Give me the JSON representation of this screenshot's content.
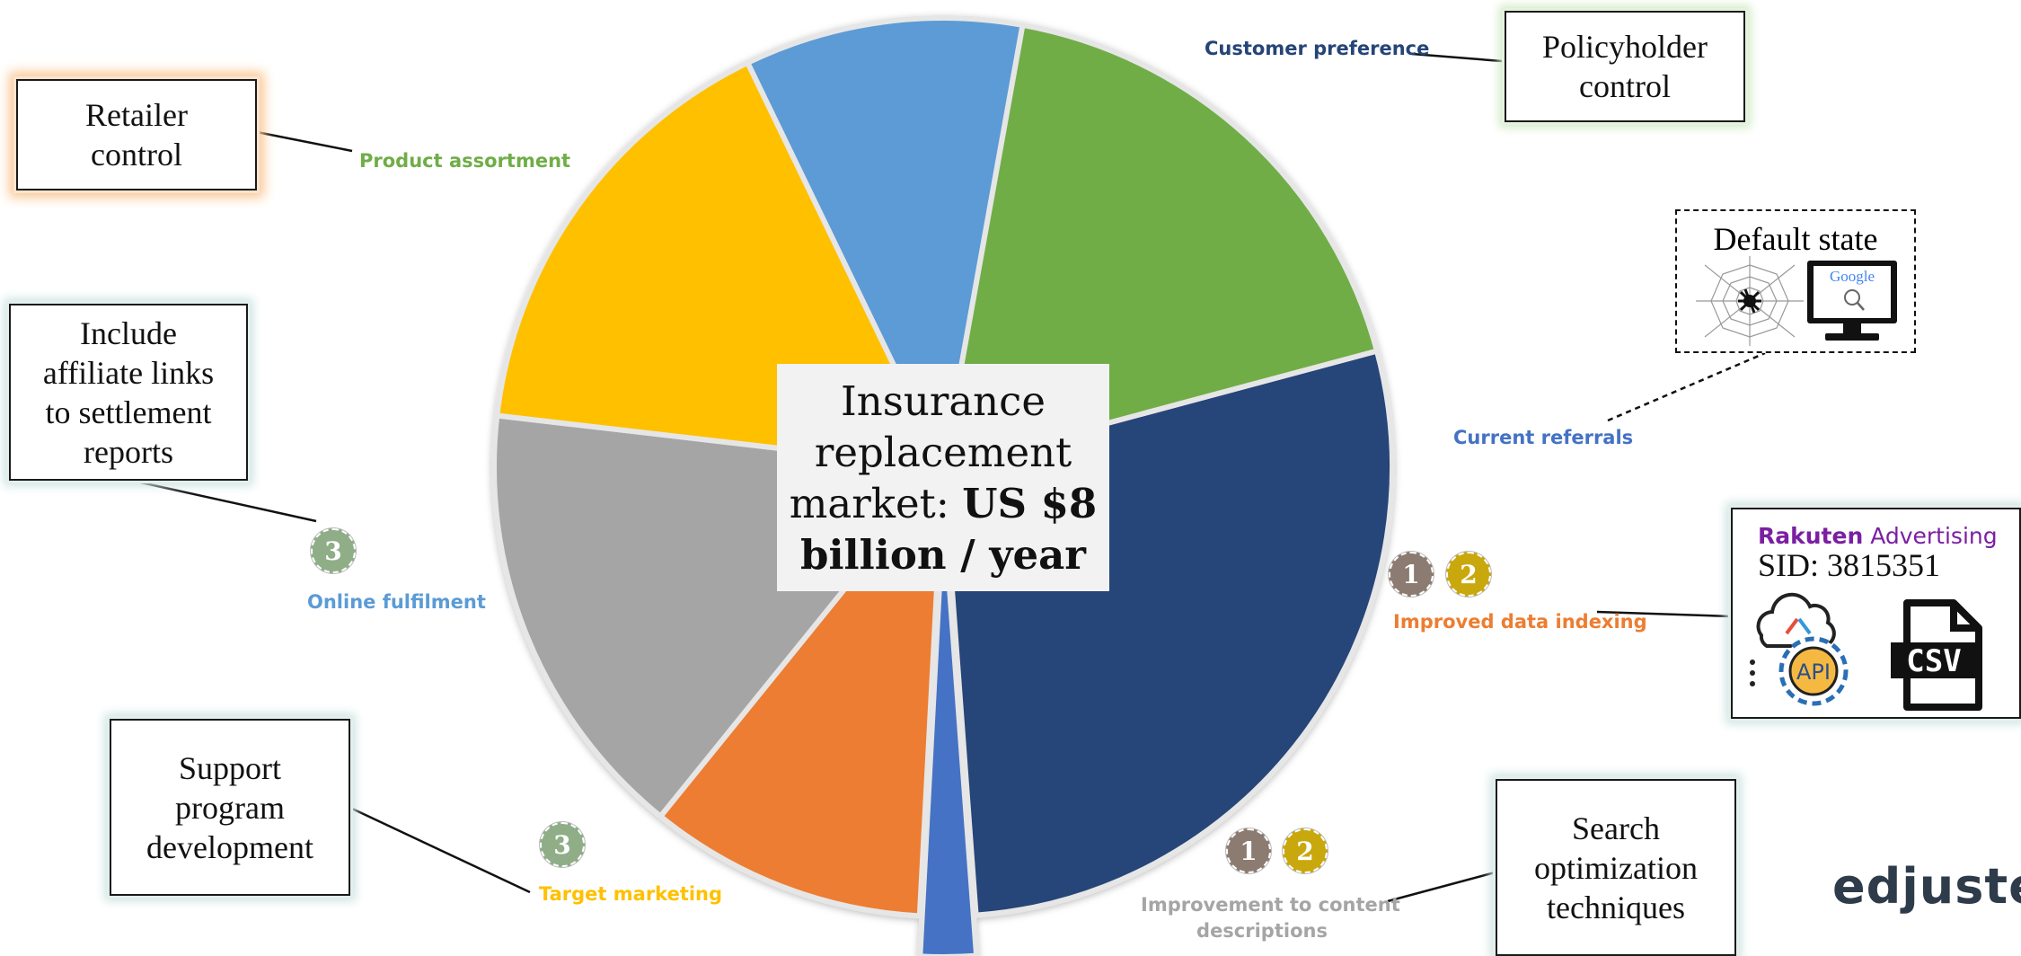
{
  "chart_data": {
    "type": "pie",
    "title": "",
    "center_label": {
      "line1": "Insurance",
      "line2": "replacement",
      "line3_prefix": "market: ",
      "line3_bold": "US $8",
      "line4_bold": "billion / year"
    },
    "slices": [
      {
        "name": "Customer preference",
        "value": 28,
        "color": "#264478"
      },
      {
        "name": "Current referrals",
        "value": 2,
        "color": "#4472c4",
        "exploded": true
      },
      {
        "name": "Improved data indexing",
        "value": 10,
        "color": "#ed7d31"
      },
      {
        "name": "Improvement to content descriptions",
        "value": 16,
        "color": "#a5a5a5"
      },
      {
        "name": "Target marketing",
        "value": 16,
        "color": "#ffc000"
      },
      {
        "name": "Online fulfilment",
        "value": 10,
        "color": "#5b9bd5"
      },
      {
        "name": "Product assortment",
        "value": 18,
        "color": "#70ad47"
      }
    ],
    "start_angle_deg": -15
  },
  "labels": {
    "customer_preference": "Customer preference",
    "current_referrals": "Current referrals",
    "improved_data_indexing": "Improved data indexing",
    "content_line1": "Improvement to content",
    "content_line2": "descriptions",
    "target_marketing": "Target marketing",
    "online_fulfilment": "Online fulfilment",
    "product_assortment": "Product assortment"
  },
  "label_colors": {
    "customer_preference": "#264478",
    "current_referrals": "#4472c4",
    "improved_data_indexing": "#ed7d31",
    "content": "#a5a5a5",
    "target_marketing": "#ffc000",
    "online_fulfilment": "#5b9bd5",
    "product_assortment": "#70ad47"
  },
  "callouts": {
    "retailer": {
      "line1": "Retailer",
      "line2": "control"
    },
    "policyholder": {
      "line1": "Policyholder",
      "line2": "control"
    },
    "affiliate": {
      "line1": "Include",
      "line2": "affiliate links",
      "line3": "to settlement",
      "line4": "reports"
    },
    "support": {
      "line1": "Support",
      "line2": "program",
      "line3": "development"
    },
    "search": {
      "line1": "Search",
      "line2": "optimization",
      "line3": "techniques"
    },
    "default_state": {
      "title": "Default state",
      "google": "Google"
    },
    "rakuten": {
      "brand_bold": "Rakuten",
      "brand_rest": " Advertising",
      "sid": "SID: 3815351",
      "api": "API",
      "csv": "CSV"
    }
  },
  "badges": {
    "one": "1",
    "two": "2",
    "three": "3",
    "color_one": "#8c7b70",
    "color_two": "#c9a80e",
    "color_three": "#8fae88"
  },
  "brand": "edjuster"
}
